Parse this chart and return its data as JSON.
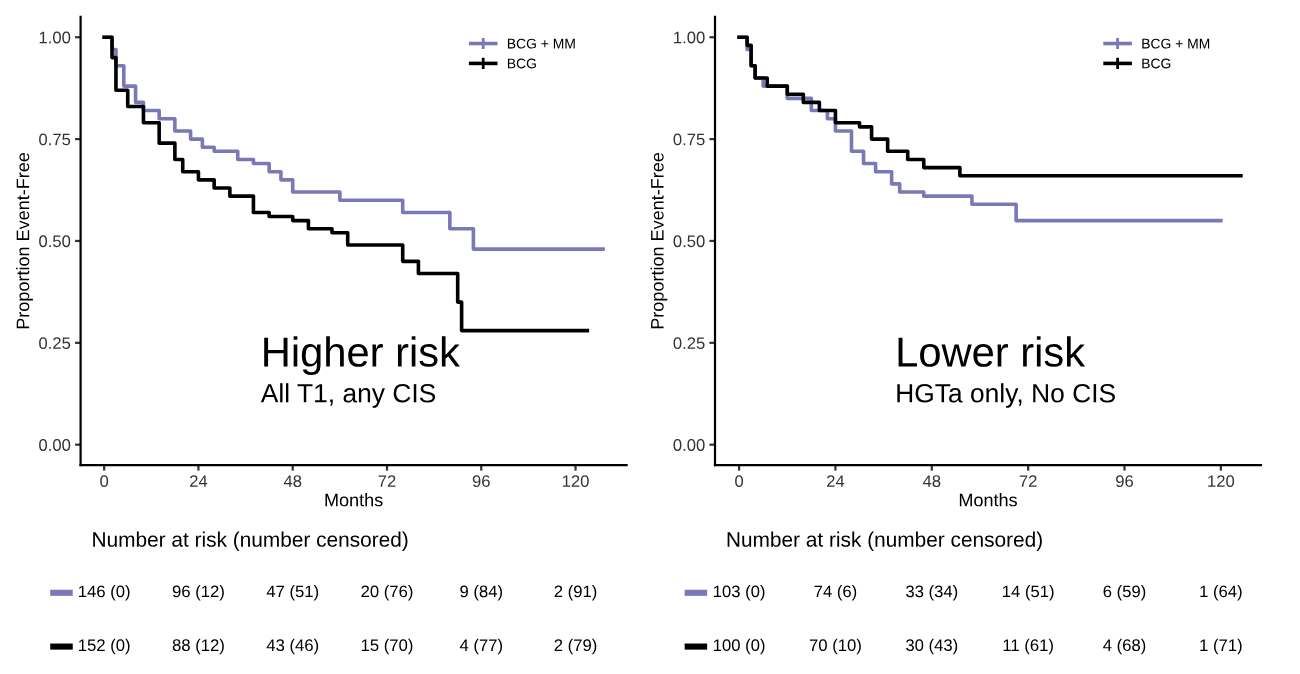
{
  "chart_data": [
    {
      "type": "step",
      "title": "Higher risk",
      "subtitle": "All T1, any CIS",
      "xlabel": "Months",
      "ylabel": "Proportion Event-Free",
      "xlim": [
        -6,
        133
      ],
      "ylim": [
        -0.05,
        1.05
      ],
      "xticks": [
        0,
        24,
        48,
        72,
        96,
        120
      ],
      "yticks": [
        {
          "value": 0,
          "label": "0.00"
        },
        {
          "value": 0.25,
          "label": "0.25"
        },
        {
          "value": 0.5,
          "label": "0.50"
        },
        {
          "value": 0.75,
          "label": "0.75"
        },
        {
          "value": 1,
          "label": "1.00"
        }
      ],
      "legend": "top right",
      "grid": false,
      "series": [
        {
          "name": "BCG + MM",
          "color": "#7b78b8",
          "x": [
            0,
            2,
            3,
            5,
            8,
            10,
            14,
            18,
            22,
            25,
            28,
            34,
            38,
            42,
            45,
            48,
            60,
            76,
            88,
            94,
            127
          ],
          "values": [
            1.0,
            0.97,
            0.93,
            0.88,
            0.84,
            0.82,
            0.8,
            0.77,
            0.75,
            0.73,
            0.72,
            0.7,
            0.69,
            0.67,
            0.65,
            0.62,
            0.6,
            0.57,
            0.53,
            0.48,
            0.48
          ]
        },
        {
          "name": "BCG",
          "color": "#000000",
          "x": [
            0,
            2,
            3,
            6,
            10,
            14,
            18,
            20,
            24,
            28,
            32,
            38,
            42,
            48,
            52,
            58,
            62,
            76,
            80,
            90,
            91,
            123
          ],
          "values": [
            1.0,
            0.95,
            0.87,
            0.83,
            0.79,
            0.74,
            0.7,
            0.67,
            0.65,
            0.63,
            0.61,
            0.57,
            0.56,
            0.55,
            0.53,
            0.52,
            0.49,
            0.45,
            0.42,
            0.35,
            0.28,
            0.28
          ]
        }
      ],
      "annotations": [
        "Number at risk (number censored)",
        "146 (0)",
        "96 (12)",
        "47 (51)",
        "20 (76)",
        "9 (84)",
        "2 (91)",
        "152 (0)",
        "88 (12)",
        "43 (46)",
        "15 (70)",
        "4 (77)",
        "2 (79)"
      ]
    },
    {
      "type": "step",
      "title": "Lower risk",
      "subtitle": "HGTa only, No CIS",
      "xlabel": "Months",
      "ylabel": "Proportion Event-Free",
      "xlim": [
        -6,
        130
      ],
      "ylim": [
        -0.05,
        1.05
      ],
      "xticks": [
        0,
        24,
        48,
        72,
        96,
        120
      ],
      "yticks": [
        {
          "value": 0,
          "label": "0.00"
        },
        {
          "value": 0.25,
          "label": "0.25"
        },
        {
          "value": 0.5,
          "label": "0.50"
        },
        {
          "value": 0.75,
          "label": "0.75"
        },
        {
          "value": 1,
          "label": "1.00"
        }
      ],
      "legend": "top right",
      "grid": false,
      "series": [
        {
          "name": "BCG + MM",
          "color": "#7b78b8",
          "x": [
            0,
            2,
            3,
            4,
            6,
            12,
            18,
            22,
            24,
            28,
            31,
            34,
            38,
            40,
            46,
            58,
            69,
            120
          ],
          "values": [
            1.0,
            0.97,
            0.93,
            0.9,
            0.88,
            0.85,
            0.82,
            0.8,
            0.77,
            0.72,
            0.69,
            0.67,
            0.64,
            0.62,
            0.61,
            0.59,
            0.55,
            0.55
          ]
        },
        {
          "name": "BCG",
          "color": "#000000",
          "x": [
            0,
            2,
            3,
            4,
            7,
            12,
            16,
            20,
            24,
            30,
            33,
            37,
            42,
            46,
            55,
            125
          ],
          "values": [
            1.0,
            0.98,
            0.93,
            0.9,
            0.88,
            0.86,
            0.84,
            0.82,
            0.79,
            0.78,
            0.75,
            0.72,
            0.7,
            0.68,
            0.66,
            0.66
          ]
        }
      ],
      "annotations": [
        "Number at risk (number censored)",
        "103 (0)",
        "74 (6)",
        "33 (34)",
        "14 (51)",
        "6 (59)",
        "1 (64)",
        "100 (0)",
        "70 (10)",
        "30 (43)",
        "11 (61)",
        "4 (68)",
        "1 (71)"
      ]
    }
  ]
}
